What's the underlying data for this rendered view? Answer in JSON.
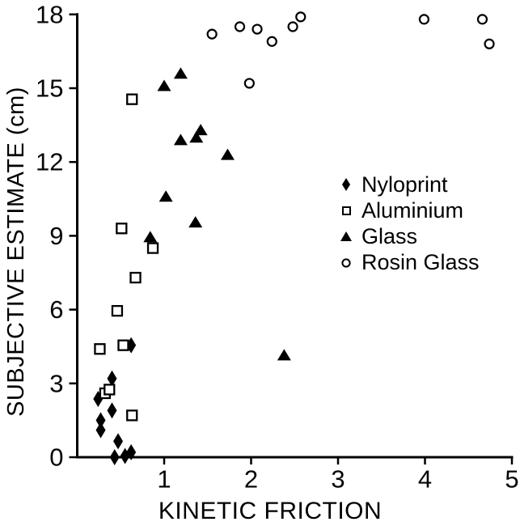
{
  "figure": {
    "background": "#ffffff",
    "ink_color": "#000000"
  },
  "chart_data": {
    "type": "scatter",
    "title": "",
    "xlabel": "KINETIC FRICTION",
    "ylabel": "SUBJECTIVE ESTIMATE (cm)",
    "xlim": [
      0,
      5
    ],
    "ylim": [
      0,
      18
    ],
    "xticks": [
      1,
      2,
      3,
      4,
      5
    ],
    "yticks": [
      0,
      3,
      6,
      9,
      12,
      15,
      18
    ],
    "grid": false,
    "legend_position": "center-right",
    "series": [
      {
        "name": "Nyloprint",
        "marker": "filled-diamond",
        "points": [
          [
            0.62,
            4.55
          ],
          [
            0.4,
            3.2
          ],
          [
            0.24,
            2.37
          ],
          [
            0.4,
            1.9
          ],
          [
            0.27,
            1.5
          ],
          [
            0.27,
            1.1
          ],
          [
            0.47,
            0.65
          ],
          [
            0.43,
            0.0
          ],
          [
            0.55,
            0.05
          ],
          [
            0.62,
            0.2
          ]
        ]
      },
      {
        "name": "Aluminium",
        "marker": "open-square",
        "points": [
          [
            0.63,
            14.55
          ],
          [
            0.51,
            9.3
          ],
          [
            0.87,
            8.5
          ],
          [
            0.67,
            7.3
          ],
          [
            0.46,
            5.95
          ],
          [
            0.26,
            4.4
          ],
          [
            0.53,
            4.55
          ],
          [
            0.32,
            2.6
          ],
          [
            0.37,
            2.75
          ],
          [
            0.63,
            1.7
          ]
        ]
      },
      {
        "name": "Glass",
        "marker": "filled-triangle",
        "points": [
          [
            1.19,
            15.6
          ],
          [
            1.0,
            15.1
          ],
          [
            1.42,
            13.3
          ],
          [
            1.37,
            13.0
          ],
          [
            1.19,
            12.9
          ],
          [
            1.73,
            12.3
          ],
          [
            1.02,
            10.6
          ],
          [
            1.36,
            9.55
          ],
          [
            0.84,
            8.95
          ],
          [
            2.38,
            4.15
          ]
        ]
      },
      {
        "name": "Rosin Glass",
        "marker": "open-circle",
        "points": [
          [
            1.55,
            17.2
          ],
          [
            1.87,
            17.5
          ],
          [
            2.07,
            17.4
          ],
          [
            2.24,
            16.9
          ],
          [
            2.48,
            17.5
          ],
          [
            2.57,
            17.9
          ],
          [
            1.98,
            15.2
          ],
          [
            3.99,
            17.8
          ],
          [
            4.66,
            17.8
          ],
          [
            4.74,
            16.8
          ]
        ]
      }
    ]
  }
}
